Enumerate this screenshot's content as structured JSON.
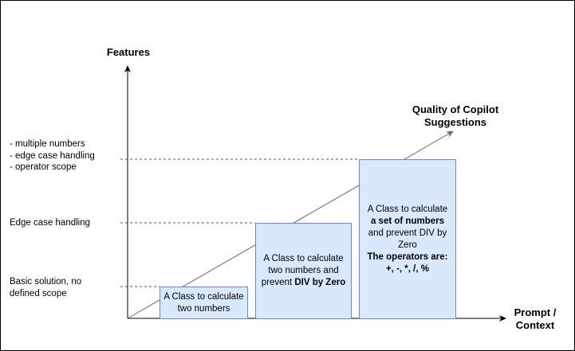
{
  "axes": {
    "y_title": "Features",
    "x_title_lines": [
      "Prompt /",
      "Context"
    ],
    "trend_label_lines": [
      "Quality of Copilot",
      "Suggestions"
    ]
  },
  "y_levels": [
    {
      "lines": [
        "- multiple numbers",
        "- edge case handling",
        "- operator scope"
      ]
    },
    {
      "lines": [
        "Edge case handling"
      ]
    },
    {
      "lines": [
        "Basic solution, no",
        "defined scope"
      ]
    }
  ],
  "boxes": [
    {
      "lines": [
        {
          "parts": [
            {
              "text": "A Class to calculate",
              "bold": false
            }
          ]
        },
        {
          "parts": [
            {
              "text": "two numbers",
              "bold": false
            }
          ]
        }
      ]
    },
    {
      "lines": [
        {
          "parts": [
            {
              "text": "A Class to calculate",
              "bold": false
            }
          ]
        },
        {
          "parts": [
            {
              "text": "two numbers and",
              "bold": false
            }
          ]
        },
        {
          "parts": [
            {
              "text": "prevent ",
              "bold": false
            },
            {
              "text": "DIV by Zero",
              "bold": true
            }
          ]
        }
      ]
    },
    {
      "lines": [
        {
          "parts": [
            {
              "text": "A Class to calculate",
              "bold": false
            }
          ]
        },
        {
          "parts": [
            {
              "text": "a set of numbers",
              "bold": true
            }
          ]
        },
        {
          "parts": [
            {
              "text": "and prevent DIV by",
              "bold": false
            }
          ]
        },
        {
          "parts": [
            {
              "text": "Zero",
              "bold": false
            }
          ]
        },
        {
          "parts": [
            {
              "text": "The operators are:",
              "bold": true
            }
          ]
        },
        {
          "parts": [
            {
              "text": "+, -, *, /, %",
              "bold": true
            }
          ]
        }
      ]
    }
  ],
  "colors": {
    "box_fill": "#dae8fc",
    "box_stroke": "#6c8ebf",
    "axis": "#000000",
    "trend_line": "#666666",
    "guide_dashes": "#555555"
  }
}
